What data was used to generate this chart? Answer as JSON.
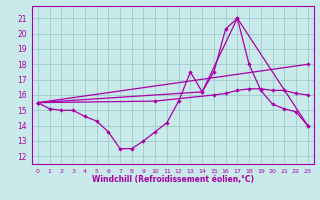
{
  "xlabel": "Windchill (Refroidissement éolien,°C)",
  "xlim": [
    -0.5,
    23.5
  ],
  "ylim": [
    11.5,
    21.8
  ],
  "yticks": [
    12,
    13,
    14,
    15,
    16,
    17,
    18,
    19,
    20,
    21
  ],
  "xticks": [
    0,
    1,
    2,
    3,
    4,
    5,
    6,
    7,
    8,
    9,
    10,
    11,
    12,
    13,
    14,
    15,
    16,
    17,
    18,
    19,
    20,
    21,
    22,
    23
  ],
  "bg_color": "#c8eaea",
  "grid_color": "#a0cccc",
  "line_color": "#aa00aa",
  "line1_x": [
    0,
    1,
    2,
    3,
    4,
    5,
    6,
    7,
    8,
    9,
    10,
    11,
    12,
    13,
    14,
    15,
    16,
    17,
    18,
    19,
    20,
    21,
    22,
    23
  ],
  "line1_y": [
    15.5,
    15.1,
    15.0,
    15.0,
    14.6,
    14.3,
    13.6,
    12.5,
    12.5,
    13.0,
    13.6,
    14.2,
    15.6,
    17.5,
    16.2,
    17.5,
    20.3,
    21.0,
    18.0,
    16.3,
    15.4,
    15.1,
    14.9,
    14.0
  ],
  "line2_x": [
    0,
    23
  ],
  "line2_y": [
    15.5,
    18.0
  ],
  "line3_x": [
    0,
    10,
    15,
    16,
    17,
    18,
    19,
    20,
    21,
    22,
    23
  ],
  "line3_y": [
    15.5,
    15.6,
    16.0,
    16.1,
    16.3,
    16.4,
    16.4,
    16.3,
    16.3,
    16.1,
    16.0
  ],
  "line4_x": [
    0,
    14,
    17,
    23
  ],
  "line4_y": [
    15.5,
    16.2,
    21.0,
    14.0
  ]
}
